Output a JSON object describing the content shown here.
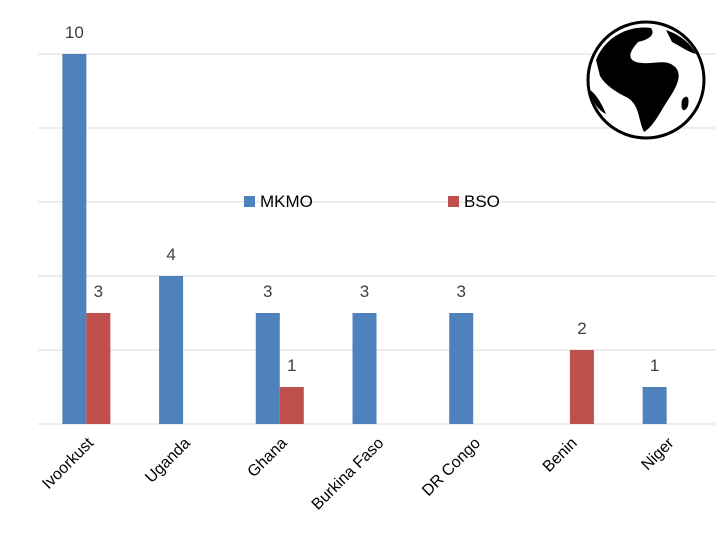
{
  "chart_data": {
    "type": "bar",
    "categories": [
      "Ivoorkust",
      "Uganda",
      "Ghana",
      "Burkina Faso",
      "DR Congo",
      "Benin",
      "Niger"
    ],
    "series": [
      {
        "name": "MKMO",
        "color": "#4f81bd",
        "values": [
          10,
          4,
          3,
          3,
          3,
          null,
          1
        ]
      },
      {
        "name": "BSO",
        "color": "#c0504d",
        "values": [
          3,
          null,
          1,
          null,
          null,
          2,
          null
        ]
      }
    ],
    "ylim": [
      0,
      10
    ],
    "y_tick_step": 2,
    "grid": true,
    "legend": "center-top",
    "decoration": "globe-icon"
  }
}
